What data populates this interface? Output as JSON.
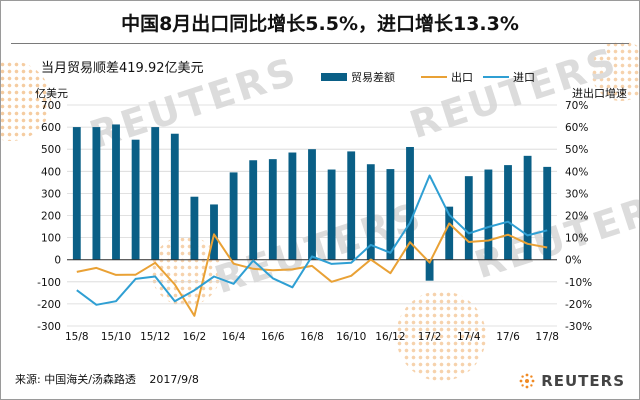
{
  "title": "中国8月出口同比增长5.5%，进口增长13.3%",
  "subtitle": "当月贸易顺差419.92亿美元",
  "footer": {
    "source": "来源: 中国海关/汤森路透",
    "date": "2017/9/8"
  },
  "brand": "REUTERS",
  "watermark": "REUTERS",
  "colors": {
    "bar": "#0a5f86",
    "export": "#e9a135",
    "import": "#2f9fd3",
    "dots": "#f3c08a"
  },
  "chart_data": {
    "type": "bar",
    "categories": [
      "15/8",
      "15/9",
      "15/10",
      "15/11",
      "15/12",
      "16/1",
      "16/2",
      "16/3",
      "16/4",
      "16/5",
      "16/6",
      "16/7",
      "16/8",
      "16/9",
      "16/10",
      "16/11",
      "16/12",
      "17/1",
      "17/2",
      "17/3",
      "17/4",
      "17/5",
      "17/6",
      "17/7",
      "17/8"
    ],
    "xtick_labels": [
      "15/8",
      "15/10",
      "15/12",
      "16/2",
      "16/4",
      "16/6",
      "16/8",
      "16/10",
      "16/12",
      "17/2",
      "17/4",
      "17/6",
      "17/8"
    ],
    "series": [
      {
        "name": "贸易差额",
        "type": "bar",
        "axis": "left",
        "values": [
          600,
          600,
          612,
          543,
          600,
          570,
          285,
          250,
          395,
          450,
          455,
          485,
          500,
          408,
          490,
          432,
          410,
          510,
          -95,
          240,
          378,
          408,
          428,
          470,
          420
        ]
      },
      {
        "name": "出口",
        "type": "line",
        "axis": "right",
        "values": [
          -5.5,
          -3.7,
          -6.9,
          -6.8,
          -1.4,
          -11.2,
          -25.4,
          11.5,
          -1.8,
          -4.1,
          -4.8,
          -4.4,
          -2.8,
          -10.0,
          -7.3,
          0.1,
          -6.1,
          7.9,
          -1.3,
          16.4,
          8.0,
          8.7,
          11.3,
          7.2,
          5.5
        ]
      },
      {
        "name": "进口",
        "type": "line",
        "axis": "right",
        "values": [
          -13.8,
          -20.4,
          -18.8,
          -8.7,
          -7.6,
          -18.8,
          -13.8,
          -7.6,
          -10.9,
          -0.4,
          -8.4,
          -12.5,
          1.5,
          -1.9,
          -1.4,
          6.7,
          3.1,
          16.7,
          38.1,
          20.3,
          11.9,
          14.8,
          17.2,
          11.0,
          13.3
        ]
      }
    ],
    "ylabel_left": "亿美元",
    "ylabel_right": "进出口增速",
    "ylim_left": [
      -300,
      700
    ],
    "ylim_right": [
      -30,
      70
    ],
    "yticks_left": [
      -300,
      -200,
      -100,
      0,
      100,
      200,
      300,
      400,
      500,
      600,
      700
    ],
    "yticks_right": [
      "-30%",
      "-20%",
      "-10%",
      "0%",
      "10%",
      "20%",
      "30%",
      "40%",
      "50%",
      "60%",
      "70%"
    ],
    "grid": true,
    "legend": "top-right"
  }
}
